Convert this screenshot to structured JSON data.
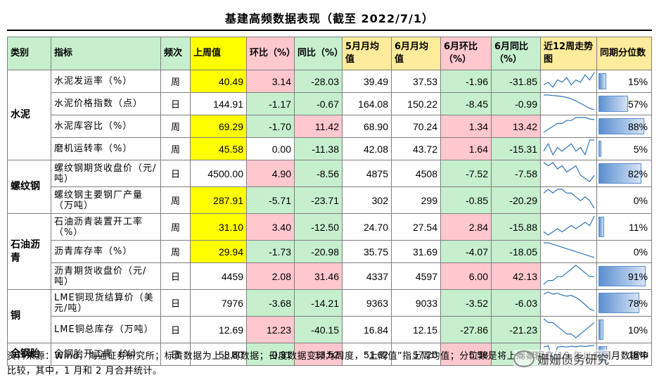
{
  "title": "基建高频数据表现（截至 2022/7/1）",
  "headers": [
    "类别",
    "指标",
    "频次",
    "上周值",
    "环比（%）",
    "同比（%）",
    "5月月均值",
    "6月月均值",
    "6月环比（%）",
    "6月同比（%）",
    "近12周走势图",
    "同期分位数"
  ],
  "rows": [
    {
      "cat": "水泥",
      "ind": "水泥发运率（%）",
      "freq": "周",
      "last": "40.49",
      "wow": "3.14",
      "yoy": "-28.03",
      "m5": "39.49",
      "m6": "37.53",
      "m6mom": "-1.96",
      "m6yoy": "-31.85",
      "pct": "15%",
      "pct_val": 0.15,
      "spark": [
        5,
        6,
        4,
        7,
        6,
        8,
        5,
        7,
        6,
        9,
        7,
        10
      ]
    },
    {
      "cat": "",
      "ind": "水泥价格指数（点）",
      "freq": "日",
      "last": "144.91",
      "wow": "-1.17",
      "yoy": "-0.67",
      "m5": "164.08",
      "m6": "150.22",
      "m6mom": "-8.45",
      "m6yoy": "-0.99",
      "pct": "57%",
      "pct_val": 0.57,
      "spark": [
        10,
        10,
        9.9,
        9.8,
        9.7,
        9.5,
        9.2,
        8.8,
        8.3,
        7.8,
        7.3,
        7
      ]
    },
    {
      "cat": "",
      "ind": "水泥库容比（%）",
      "freq": "周",
      "last": "69.29",
      "wow": "-1.70",
      "yoy": "11.42",
      "m5": "68.90",
      "m6": "70.24",
      "m6mom": "1.34",
      "m6yoy": "13.42",
      "pct": "88%",
      "pct_val": 0.88,
      "spark": [
        3,
        4,
        5,
        6,
        6,
        7,
        7,
        8,
        8,
        8,
        7.5,
        7.3
      ]
    },
    {
      "cat": "",
      "ind": "磨机运转率（%）",
      "freq": "周",
      "last": "45.58",
      "wow": "0.00",
      "yoy": "-11.38",
      "m5": "42.08",
      "m6": "43.72",
      "m6mom": "1.64",
      "m6yoy": "-15.31",
      "pct": "5%",
      "pct_val": 0.05,
      "spark": [
        6,
        8,
        5,
        7,
        6,
        7,
        8,
        6,
        7,
        5,
        9,
        9
      ]
    },
    {
      "cat": "螺纹钢",
      "ind": "螺纹钢期货收盘价（元/吨）",
      "freq": "日",
      "last": "4500.00",
      "wow": "4.90",
      "yoy": "-8.56",
      "m5": "4875",
      "m6": "4508",
      "m6mom": "-7.52",
      "m6yoy": "-7.58",
      "pct": "82%",
      "pct_val": 0.82,
      "spark": [
        9,
        8,
        9,
        7,
        8,
        6,
        7,
        8,
        5,
        4,
        3,
        5
      ]
    },
    {
      "cat": "",
      "ind": "螺纹钢主要钢厂产量（万吨）",
      "freq": "周",
      "last": "287.91",
      "wow": "-5.71",
      "yoy": "-23.71",
      "m5": "302",
      "m6": "299",
      "m6mom": "-0.85",
      "m6yoy": "-20.29",
      "pct": "0%",
      "pct_val": 0.0,
      "spark": [
        7,
        8,
        7,
        8,
        8,
        7,
        7,
        6,
        5,
        6,
        5,
        3
      ]
    },
    {
      "cat": "石油沥青",
      "ind": "石油沥青装置开工率（%）",
      "freq": "周",
      "last": "31.10",
      "wow": "3.40",
      "yoy": "-12.50",
      "m5": "24.70",
      "m6": "27.54",
      "m6mom": "2.84",
      "m6yoy": "-15.88",
      "pct": "11%",
      "pct_val": 0.11,
      "spark": [
        4,
        3,
        4,
        5,
        4,
        5,
        6,
        5,
        6,
        7,
        6,
        9
      ]
    },
    {
      "cat": "",
      "ind": "沥青库存率（%）",
      "freq": "周",
      "last": "29.94",
      "wow": "-1.73",
      "yoy": "-20.98",
      "m5": "35.75",
      "m6": "31.69",
      "m6mom": "-4.07",
      "m6yoy": "-18.05",
      "pct": "0%",
      "pct_val": 0.0,
      "spark": [
        9,
        9,
        8.5,
        8,
        7.5,
        7,
        6.5,
        6,
        5.5,
        5,
        4.5,
        4
      ]
    },
    {
      "cat": "",
      "ind": "沥青期货收盘价（元/吨）",
      "freq": "日",
      "last": "4459",
      "wow": "2.08",
      "yoy": "31.46",
      "m5": "4337",
      "m6": "4597",
      "m6mom": "6.00",
      "m6yoy": "42.13",
      "pct": "91%",
      "pct_val": 0.91,
      "spark": [
        4,
        5,
        5,
        6,
        6,
        7,
        8,
        9,
        8,
        7,
        6,
        6
      ]
    },
    {
      "cat": "铜",
      "ind": "LME铜现货结算价（美元/吨）",
      "freq": "日",
      "last": "7976",
      "wow": "-3.68",
      "yoy": "-14.21",
      "m5": "9363",
      "m6": "9033",
      "m6mom": "-3.52",
      "m6yoy": "-6.03",
      "pct": "78%",
      "pct_val": 0.78,
      "spark": [
        9,
        9.5,
        9,
        9.2,
        8.8,
        8.5,
        8.7,
        8.2,
        7.5,
        6.5,
        5.5,
        5
      ]
    },
    {
      "cat": "",
      "ind": "LME铜总库存（万吨）",
      "freq": "日",
      "last": "12.69",
      "wow": "12.23",
      "yoy": "-40.15",
      "m5": "16.84",
      "m6": "12.15",
      "m6mom": "-27.86",
      "m6yoy": "-21.23",
      "pct": "10%",
      "pct_val": 0.1,
      "spark": [
        9,
        8,
        8,
        7,
        6,
        5,
        5,
        4,
        5,
        6,
        7,
        8
      ]
    },
    {
      "cat": "全钢胎",
      "ind": "全钢胎开工率（%）",
      "freq": "日",
      "last": "58.80",
      "wow": "-0.31",
      "yoy": "13.52",
      "m5": "51.62",
      "m6": "57.20",
      "m6mom": "5.58",
      "m6yoy": "-5.38",
      "pct": "16%",
      "pct_val": 0.16,
      "spark": [
        7,
        7.5,
        2,
        7,
        7.2,
        7,
        7.3,
        7.1,
        7.4,
        7.2,
        7.5,
        7.6
      ]
    }
  ],
  "footer": "资料来源：Wind，海通证券研究所；标黄数据为上上周数据；日度数据变频为周度，“上周值”指上周均值；分位数是将上周数据在 15 年以来同月数据中比较，其中，1 月和 2 月合并统计。",
  "watermark": "姗姗债务研究",
  "colors": {
    "yellow": "#ffff00",
    "pink": "#ffc7ce",
    "green": "#c6efce",
    "bar": "#5b8fd0",
    "spark": "#2e75b6"
  }
}
